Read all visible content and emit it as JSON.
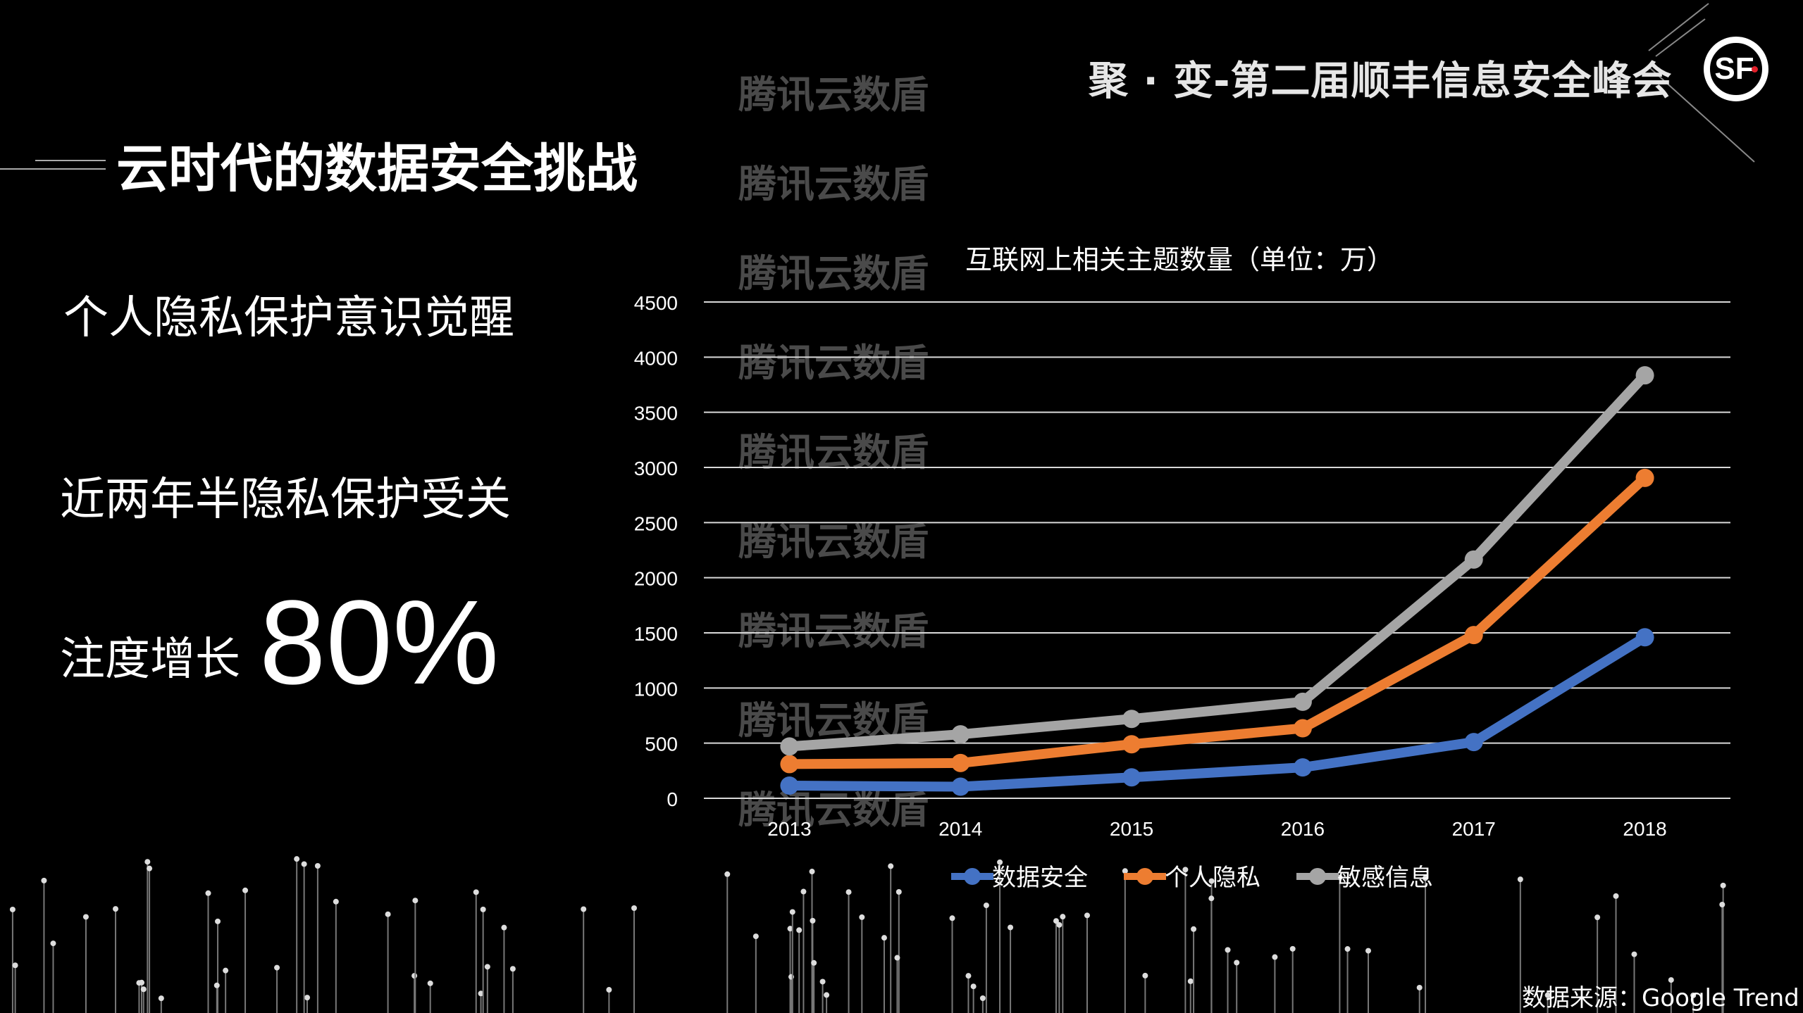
{
  "header": {
    "summit": "聚 · 变-第二届顺丰信息安全峰会",
    "logo": "SF"
  },
  "slide": {
    "title": "云时代的数据安全挑战",
    "line1": "个人隐私保护意识觉醒",
    "line2": "近两年半隐私保护受关",
    "line3": "注度增长",
    "highlight": "80%",
    "watermark": "腾讯云数盾",
    "source": "数据来源：Google Trend"
  },
  "chart_data": {
    "type": "line",
    "title": "互联网上相关主题数量（单位：万）",
    "categories": [
      "2013",
      "2014",
      "2015",
      "2016",
      "2017",
      "2018"
    ],
    "ylim": [
      0,
      4500
    ],
    "yticks": [
      0,
      500,
      1000,
      1500,
      2000,
      2500,
      3000,
      3500,
      4000,
      4500
    ],
    "grid": true,
    "legend": "bottom",
    "series": [
      {
        "name": "数据安全",
        "color": "#4472c4",
        "values": [
          115,
          105,
          190,
          280,
          510,
          1460
        ]
      },
      {
        "name": "个人隐私",
        "color": "#ed7d31",
        "values": [
          310,
          320,
          490,
          635,
          1480,
          2905
        ]
      },
      {
        "name": "敏感信息",
        "color": "#a5a5a5",
        "values": [
          470,
          580,
          720,
          875,
          2165,
          3835
        ]
      }
    ]
  }
}
